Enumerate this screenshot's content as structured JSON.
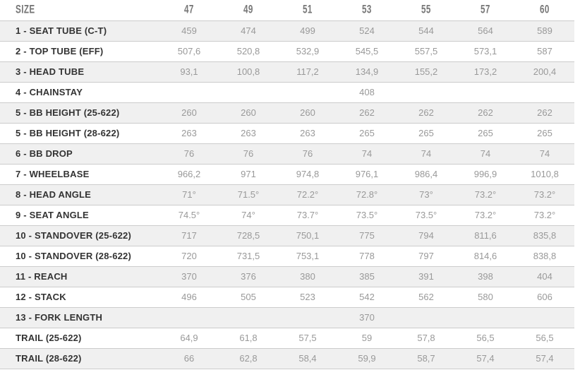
{
  "colors": {
    "background": "#ffffff",
    "row_alt_background": "#f0f0f0",
    "row_border": "#cccccc",
    "header_text": "#777777",
    "label_text": "#333333",
    "value_text": "#999999"
  },
  "chart_data": {
    "type": "table",
    "columns": [
      "SIZE",
      "47",
      "49",
      "51",
      "53",
      "55",
      "57",
      "60"
    ],
    "rows": [
      {
        "label": "1 - SEAT TUBE (C-T)",
        "values": [
          "459",
          "474",
          "499",
          "524",
          "544",
          "564",
          "589"
        ]
      },
      {
        "label": "2 - TOP TUBE (EFF)",
        "values": [
          "507,6",
          "520,8",
          "532,9",
          "545,5",
          "557,5",
          "573,1",
          "587"
        ]
      },
      {
        "label": "3 - HEAD TUBE",
        "values": [
          "93,1",
          "100,8",
          "117,2",
          "134,9",
          "155,2",
          "173,2",
          "200,4"
        ]
      },
      {
        "label": "4 - CHAINSTAY",
        "span": 7,
        "value": "408"
      },
      {
        "label": "5 - BB HEIGHT (25-622)",
        "values": [
          "260",
          "260",
          "260",
          "262",
          "262",
          "262",
          "262"
        ]
      },
      {
        "label": "5 - BB HEIGHT (28-622)",
        "values": [
          "263",
          "263",
          "263",
          "265",
          "265",
          "265",
          "265"
        ]
      },
      {
        "label": "6 - BB DROP",
        "values": [
          "76",
          "76",
          "76",
          "74",
          "74",
          "74",
          "74"
        ]
      },
      {
        "label": "7 - WHEELBASE",
        "values": [
          "966,2",
          "971",
          "974,8",
          "976,1",
          "986,4",
          "996,9",
          "1010,8"
        ]
      },
      {
        "label": "8 - HEAD ANGLE",
        "values": [
          "71°",
          "71.5°",
          "72.2°",
          "72.8°",
          "73°",
          "73.2°",
          "73.2°"
        ]
      },
      {
        "label": "9 - SEAT ANGLE",
        "values": [
          "74.5°",
          "74°",
          "73.7°",
          "73.5°",
          "73.5°",
          "73.2°",
          "73.2°"
        ]
      },
      {
        "label": "10 - STANDOVER (25-622)",
        "values": [
          "717",
          "728,5",
          "750,1",
          "775",
          "794",
          "811,6",
          "835,8"
        ]
      },
      {
        "label": "10 - STANDOVER (28-622)",
        "values": [
          "720",
          "731,5",
          "753,1",
          "778",
          "797",
          "814,6",
          "838,8"
        ]
      },
      {
        "label": "11 - REACH",
        "values": [
          "370",
          "376",
          "380",
          "385",
          "391",
          "398",
          "404"
        ]
      },
      {
        "label": "12 - STACK",
        "values": [
          "496",
          "505",
          "523",
          "542",
          "562",
          "580",
          "606"
        ]
      },
      {
        "label": "13 - FORK LENGTH",
        "span": 7,
        "value": "370"
      },
      {
        "label": "TRAIL (25-622)",
        "values": [
          "64,9",
          "61,8",
          "57,5",
          "59",
          "57,8",
          "56,5",
          "56,5"
        ]
      },
      {
        "label": "TRAIL (28-622)",
        "values": [
          "66",
          "62,8",
          "58,4",
          "59,9",
          "58,7",
          "57,4",
          "57,4"
        ]
      }
    ]
  }
}
